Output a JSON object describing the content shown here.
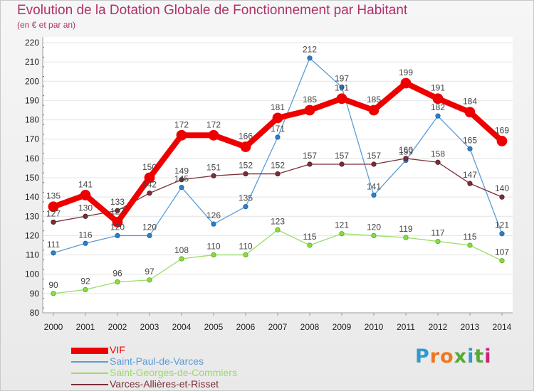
{
  "title": "Evolution de la Dotation Globale de Fonctionnement par Habitant",
  "subtitle": "(en € et par an)",
  "brand": "Proxiti",
  "brand_colors": [
    "#3399cc",
    "#ee7722",
    "#ee7722",
    "#55aa33",
    "#3399cc",
    "#55aa33",
    "#cc2277"
  ],
  "chart_data": {
    "type": "line",
    "title": "Evolution de la Dotation Globale de Fonctionnement par Habitant",
    "subtitle": "(en € et par an)",
    "xlabel": "",
    "ylabel": "",
    "x": [
      "2000",
      "2001",
      "2002",
      "2003",
      "2004",
      "2005",
      "2006",
      "2007",
      "2008",
      "2009",
      "2010",
      "2011",
      "2012",
      "2013",
      "2014"
    ],
    "ylim": [
      80,
      220
    ],
    "yticks": [
      80,
      90,
      100,
      110,
      120,
      130,
      140,
      150,
      160,
      170,
      180,
      190,
      200,
      210,
      220
    ],
    "grid": "horizontal",
    "legend_position": "bottom-left",
    "series": [
      {
        "name": "VIF",
        "color": "#ee0000",
        "values": [
          135,
          141,
          127,
          150,
          172,
          172,
          166,
          181,
          185,
          191,
          185,
          199,
          191,
          184,
          169
        ]
      },
      {
        "name": "Saint-Paul-de-Varces",
        "color": "#5b9bd5",
        "values": [
          111,
          116,
          120,
          120,
          145,
          126,
          135,
          171,
          212,
          197,
          141,
          159,
          182,
          165,
          121
        ]
      },
      {
        "name": "Saint-Georges-de-Commiers",
        "color": "#99dd66",
        "values": [
          90,
          92,
          96,
          97,
          108,
          110,
          110,
          123,
          115,
          121,
          120,
          119,
          117,
          115,
          107
        ]
      },
      {
        "name": "Varces-Allières-et-Risset",
        "color": "#7b2e38",
        "values": [
          127,
          130,
          133,
          142,
          149,
          151,
          152,
          152,
          157,
          157,
          157,
          160,
          158,
          147,
          140
        ]
      }
    ]
  }
}
